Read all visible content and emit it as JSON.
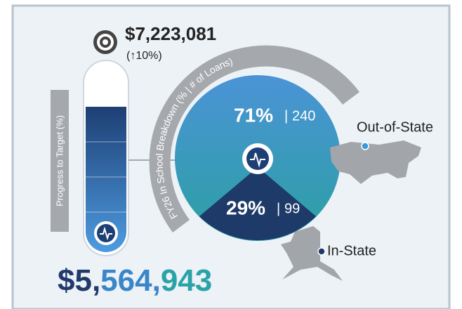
{
  "target": {
    "amount": "$7,223,081",
    "change": "(↑10%)"
  },
  "gauge": {
    "label": "Progress to Target (%)"
  },
  "actual": {
    "parts": [
      "$5,",
      "564,",
      "943"
    ]
  },
  "breakdown": {
    "title": "FY26 In School Breakdown (% | # of Loans)",
    "separator": "|",
    "segments": [
      {
        "label": "Out-of-State",
        "percent": "71%",
        "loans": "240"
      },
      {
        "label": "In-State",
        "percent": "29%",
        "loans": "99"
      }
    ]
  }
}
